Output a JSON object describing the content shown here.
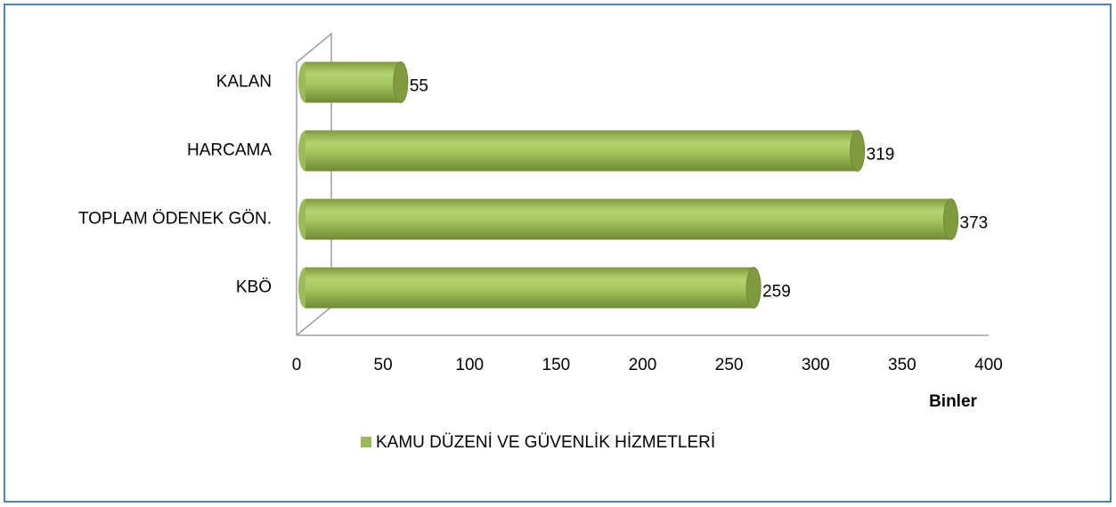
{
  "chart_data": {
    "type": "bar",
    "orientation": "horizontal",
    "categories": [
      "KALAN",
      "HARCAMA",
      "TOPLAM ÖDENEK GÖN.",
      "KBÖ"
    ],
    "series": [
      {
        "name": "KAMU DÜZENİ VE GÜVENLİK HİZMETLERİ",
        "color": "#9bbb59",
        "values": [
          55,
          319,
          373,
          259
        ]
      }
    ],
    "xlim": [
      0,
      400
    ],
    "xticks": [
      0,
      50,
      100,
      150,
      200,
      250,
      300,
      350,
      400
    ],
    "x_axis_label": "Binler",
    "legend": "bottom"
  }
}
